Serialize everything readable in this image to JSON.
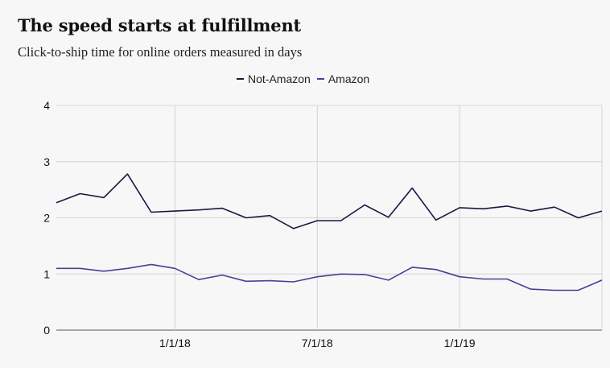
{
  "header": {
    "title": "The speed starts at fulfillment",
    "subtitle": "Click-to-ship time for online orders measured in days"
  },
  "chart_data": {
    "type": "line",
    "title": "The speed starts at fulfillment",
    "subtitle": "Click-to-ship time for online orders measured in days",
    "xlabel": "",
    "ylabel": "",
    "ylim": [
      0,
      4
    ],
    "yticks": [
      "0",
      "1",
      "2",
      "3",
      "4"
    ],
    "xticks": [
      {
        "label": "1/1/18",
        "index": 5
      },
      {
        "label": "7/1/18",
        "index": 11
      },
      {
        "label": "1/1/19",
        "index": 17
      }
    ],
    "grid": true,
    "legend_position": "top",
    "colors": {
      "not_amazon": "#1b1740",
      "amazon": "#4a3f96"
    },
    "series": [
      {
        "name": "Not-Amazon",
        "color": "#1b1740",
        "values": [
          2.27,
          2.43,
          2.36,
          2.78,
          2.1,
          2.12,
          2.14,
          2.17,
          2.0,
          2.04,
          1.81,
          1.95,
          1.95,
          2.23,
          2.01,
          2.53,
          1.96,
          2.18,
          2.16,
          2.21,
          2.12,
          2.19,
          2.0,
          2.12
        ]
      },
      {
        "name": "Amazon",
        "color": "#4a3f96",
        "values": [
          1.1,
          1.1,
          1.05,
          1.1,
          1.17,
          1.1,
          0.9,
          0.98,
          0.87,
          0.88,
          0.86,
          0.95,
          1.0,
          0.99,
          0.89,
          1.12,
          1.08,
          0.95,
          0.91,
          0.91,
          0.73,
          0.71,
          0.71,
          0.89
        ]
      }
    ]
  }
}
